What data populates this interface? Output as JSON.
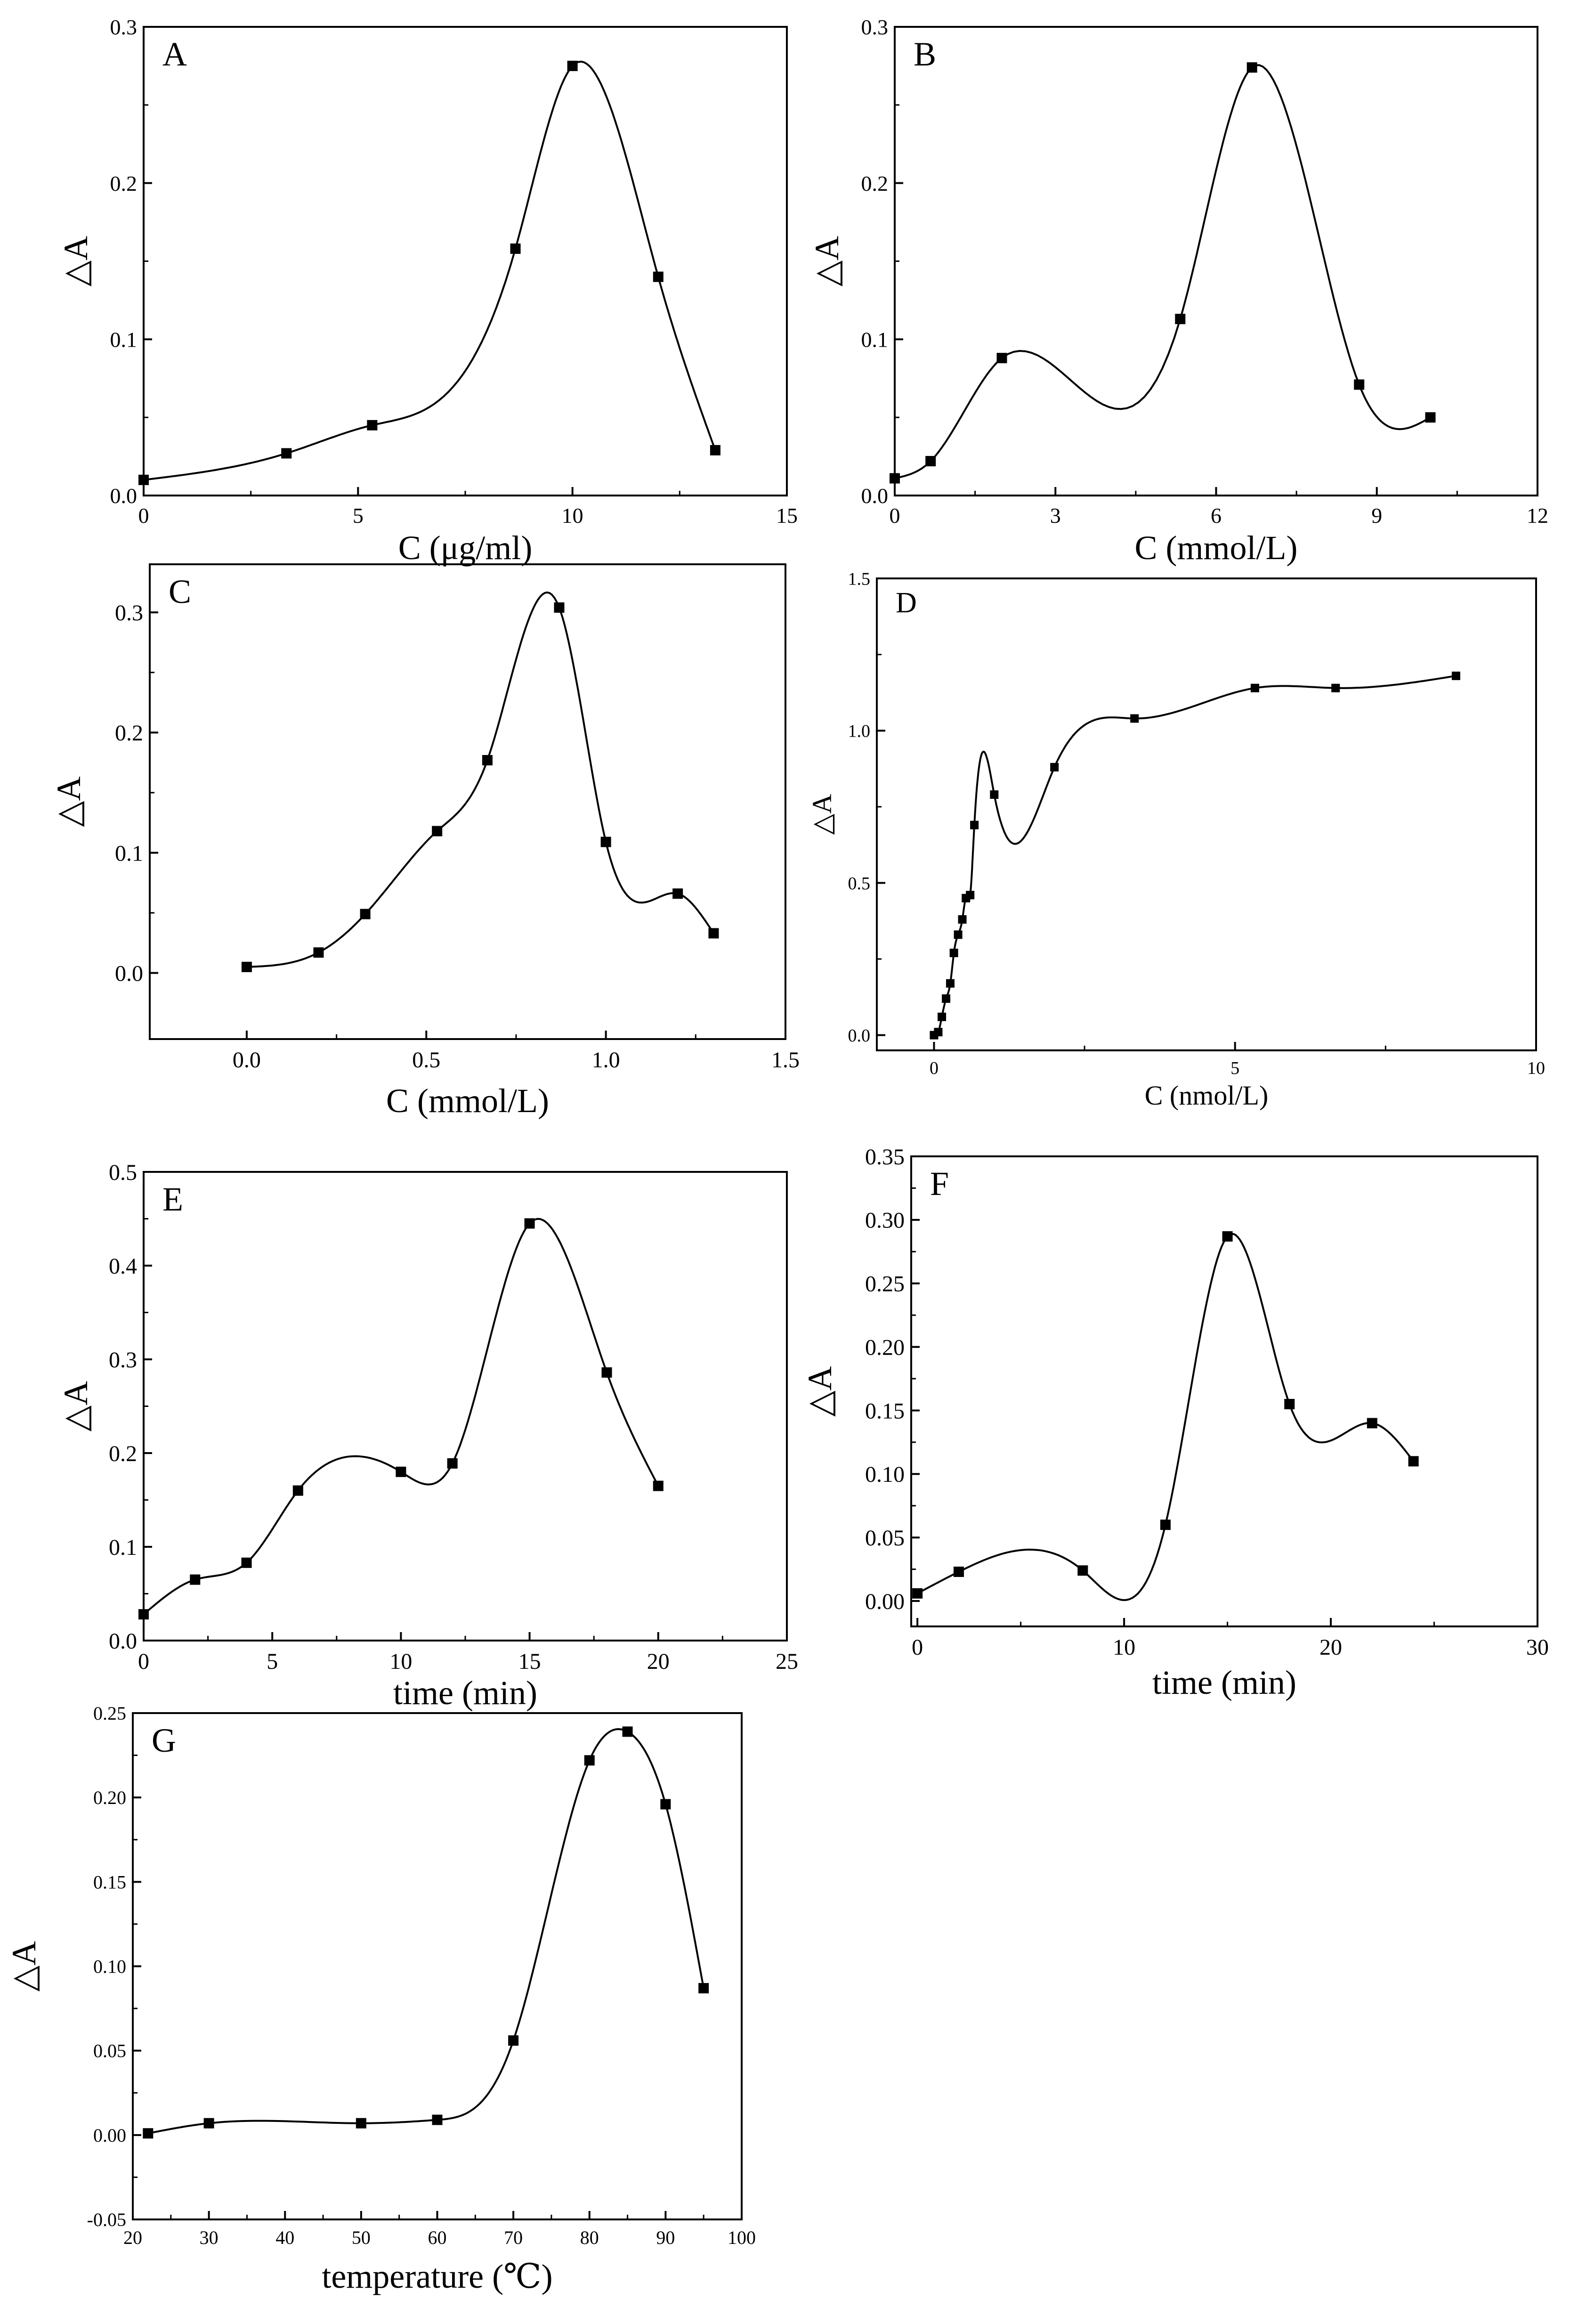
{
  "chart_data": [
    {
      "type": "line",
      "panel_label": "A",
      "xlabel": "C (μg/ml)",
      "ylabel": "△A",
      "xlim": [
        0,
        15
      ],
      "ylim": [
        0,
        0.3
      ],
      "xticks": [
        0,
        5,
        10,
        15
      ],
      "xtick_labels": [
        "0",
        "5",
        "10",
        "15"
      ],
      "yticks": [
        0,
        0.1,
        0.2,
        0.3
      ],
      "ytick_labels": [
        "0.0",
        "0.1",
        "0.2",
        "0.3"
      ],
      "x": [
        0,
        3.33,
        5.33,
        8.67,
        10,
        12,
        13.33
      ],
      "y": [
        0.01,
        0.027,
        0.045,
        0.158,
        0.275,
        0.14,
        0.029
      ]
    },
    {
      "type": "line",
      "panel_label": "B",
      "xlabel": "C  (mmol/L)",
      "ylabel": "△A",
      "xlim": [
        0,
        12
      ],
      "ylim": [
        0,
        0.3
      ],
      "xticks": [
        0,
        3,
        6,
        9,
        12
      ],
      "xtick_labels": [
        "0",
        "3",
        "6",
        "9",
        "12"
      ],
      "yticks": [
        0,
        0.1,
        0.2,
        0.3
      ],
      "ytick_labels": [
        "0.0",
        "0.1",
        "0.2",
        "0.3"
      ],
      "x": [
        0,
        0.67,
        2,
        5.33,
        6.67,
        8.67,
        10
      ],
      "y": [
        0.011,
        0.022,
        0.088,
        0.113,
        0.274,
        0.071,
        0.05
      ]
    },
    {
      "type": "line",
      "panel_label": "C",
      "xlabel": "C (mmol/L)",
      "ylabel": "△A",
      "xlim": [
        -0.27,
        1.5
      ],
      "ylim": [
        -0.055,
        0.34
      ],
      "xticks": [
        0,
        0.5,
        1.0,
        1.5
      ],
      "xtick_labels": [
        "0.0",
        "0.5",
        "1.0",
        "1.5"
      ],
      "yticks": [
        0,
        0.1,
        0.2,
        0.3
      ],
      "ytick_labels": [
        "0.0",
        "0.1",
        "0.2",
        "0.3"
      ],
      "x": [
        0,
        0.2,
        0.33,
        0.53,
        0.67,
        0.87,
        1.0,
        1.2,
        1.3
      ],
      "y": [
        0.005,
        0.017,
        0.049,
        0.118,
        0.177,
        0.304,
        0.109,
        0.066,
        0.033
      ]
    },
    {
      "type": "line",
      "panel_label": "D",
      "xlabel": "C (nmol/L)",
      "ylabel": "△A",
      "xlim": [
        -0.95,
        10
      ],
      "ylim": [
        -0.05,
        1.5
      ],
      "xticks": [
        0,
        5,
        10
      ],
      "xtick_labels": [
        "0",
        "5",
        "10"
      ],
      "yticks": [
        0,
        0.5,
        1.0,
        1.5
      ],
      "ytick_labels": [
        "0.0",
        "0.5",
        "1.0",
        "1.5"
      ],
      "x": [
        0,
        0.07,
        0.13,
        0.2,
        0.27,
        0.33,
        0.4,
        0.47,
        0.53,
        0.6,
        0.67,
        1.0,
        2.0,
        3.33,
        5.33,
        6.67,
        8.67
      ],
      "y": [
        0,
        0.01,
        0.06,
        0.12,
        0.17,
        0.27,
        0.33,
        0.38,
        0.45,
        0.46,
        0.69,
        0.79,
        0.88,
        1.04,
        1.14,
        1.14,
        1.18
      ]
    },
    {
      "type": "line",
      "panel_label": "E",
      "xlabel": "time (min)",
      "ylabel": "△A",
      "xlim": [
        0,
        25
      ],
      "ylim": [
        0,
        0.5
      ],
      "xticks": [
        0,
        5,
        10,
        15,
        20,
        25
      ],
      "xtick_labels": [
        "0",
        "5",
        "10",
        "15",
        "20",
        "25"
      ],
      "yticks": [
        0,
        0.1,
        0.2,
        0.3,
        0.4,
        0.5
      ],
      "ytick_labels": [
        "0.0",
        "0.1",
        "0.2",
        "0.3",
        "0.4",
        "0.5"
      ],
      "x": [
        0,
        2,
        4,
        6,
        10,
        12,
        15,
        18,
        20
      ],
      "y": [
        0.028,
        0.065,
        0.083,
        0.16,
        0.18,
        0.189,
        0.445,
        0.286,
        0.165
      ]
    },
    {
      "type": "line",
      "panel_label": "F",
      "xlabel": "time (min)",
      "ylabel": "△A",
      "xlim": [
        -0.3,
        30
      ],
      "ylim": [
        -0.02,
        0.35
      ],
      "xticks": [
        0,
        10,
        20,
        30
      ],
      "xtick_labels": [
        "0",
        "10",
        "20",
        "30"
      ],
      "yticks": [
        0,
        0.05,
        0.1,
        0.15,
        0.2,
        0.25,
        0.3,
        0.35
      ],
      "ytick_labels": [
        "0.00",
        "0.05",
        "0.10",
        "0.15",
        "0.20",
        "0.25",
        "0.30",
        "0.35"
      ],
      "x": [
        0,
        2,
        8,
        12,
        15,
        18,
        22,
        24
      ],
      "y": [
        0.006,
        0.023,
        0.024,
        0.06,
        0.287,
        0.155,
        0.14,
        0.11
      ]
    },
    {
      "type": "line",
      "panel_label": "G",
      "xlabel": "temperature (℃)",
      "ylabel": "△A",
      "xlim": [
        20,
        100
      ],
      "ylim": [
        -0.05,
        0.25
      ],
      "xticks": [
        20,
        30,
        40,
        50,
        60,
        70,
        80,
        90,
        100
      ],
      "xtick_labels": [
        "20",
        "30",
        "40",
        "50",
        "60",
        "70",
        "80",
        "90",
        "100"
      ],
      "yticks": [
        -0.05,
        0,
        0.05,
        0.1,
        0.15,
        0.2,
        0.25
      ],
      "ytick_labels": [
        "-0.05",
        "0.00",
        "0.05",
        "0.10",
        "0.15",
        "0.20",
        "0.25"
      ],
      "x": [
        22,
        30,
        50,
        60,
        70,
        80,
        85,
        90,
        95
      ],
      "y": [
        0.001,
        0.007,
        0.007,
        0.009,
        0.056,
        0.222,
        0.239,
        0.196,
        0.087
      ]
    }
  ]
}
